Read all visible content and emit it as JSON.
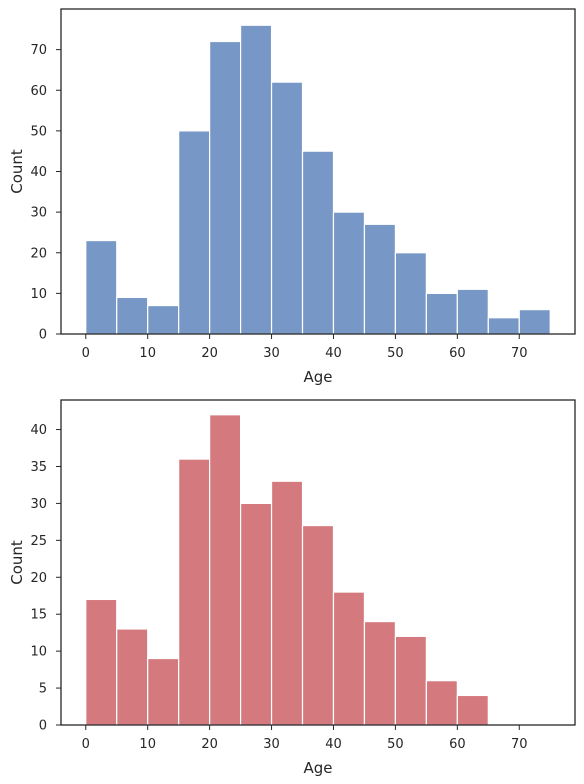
{
  "chart_data": [
    {
      "type": "bar",
      "subtype": "histogram",
      "color": "#7797c6",
      "bin_width": 5,
      "bin_starts": [
        0,
        5,
        10,
        15,
        20,
        25,
        30,
        35,
        40,
        45,
        50,
        55,
        60,
        65,
        70
      ],
      "values": [
        23,
        9,
        7,
        50,
        72,
        76,
        62,
        45,
        30,
        27,
        20,
        10,
        11,
        4,
        6
      ],
      "xlabel": "Age",
      "ylabel": "Count",
      "xlim": [
        -4,
        79
      ],
      "ylim": [
        0,
        80
      ],
      "xticks": [
        0,
        10,
        20,
        30,
        40,
        50,
        60,
        70
      ],
      "yticks": [
        0,
        10,
        20,
        30,
        40,
        50,
        60,
        70
      ],
      "grid": false
    },
    {
      "type": "bar",
      "subtype": "histogram",
      "color": "#d4797d",
      "bin_width": 5,
      "bin_starts": [
        0,
        5,
        10,
        15,
        20,
        25,
        30,
        35,
        40,
        45,
        50,
        55,
        60,
        65,
        70
      ],
      "values": [
        17,
        13,
        9,
        36,
        42,
        30,
        33,
        27,
        18,
        14,
        12,
        6,
        4,
        0,
        0
      ],
      "xlabel": "Age",
      "ylabel": "Count",
      "xlim": [
        -4,
        79
      ],
      "ylim": [
        0,
        44
      ],
      "xticks": [
        0,
        10,
        20,
        30,
        40,
        50,
        60,
        70
      ],
      "yticks": [
        0,
        5,
        10,
        15,
        20,
        25,
        30,
        35,
        40
      ],
      "grid": false
    }
  ]
}
